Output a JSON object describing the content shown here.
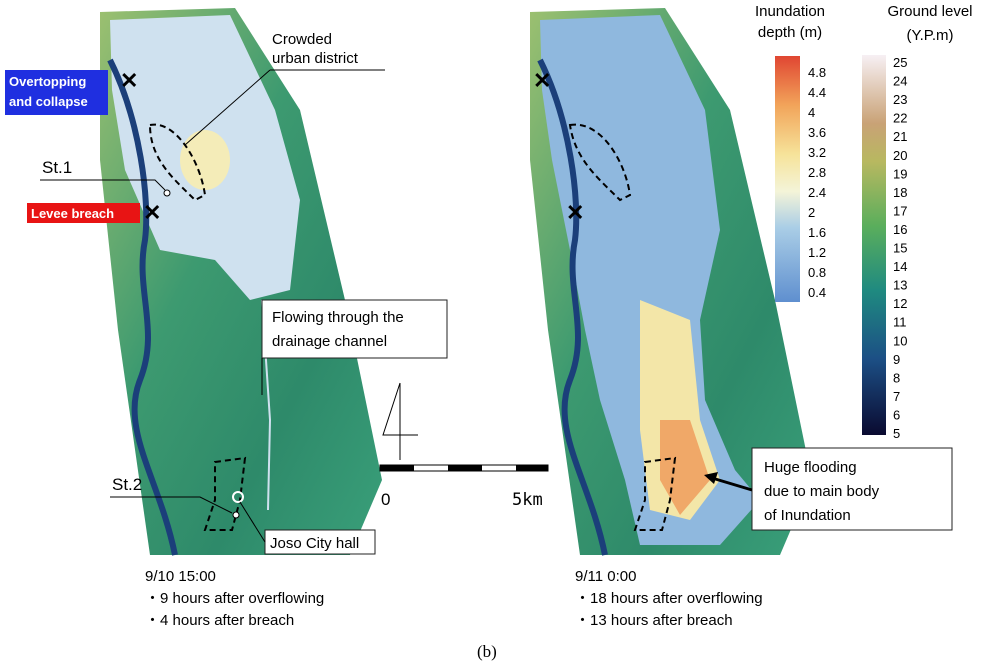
{
  "annotations": {
    "crowded": [
      "Crowded",
      "urban district"
    ],
    "overtopping": [
      "Overtopping",
      "and collapse"
    ],
    "st1": "St.1",
    "levee": "Levee breach",
    "flowing": [
      "Flowing through the",
      "drainage channel"
    ],
    "st2": "St.2",
    "joso": "Joso City hall",
    "huge": [
      "Huge flooding",
      "due to main body",
      "of Inundation"
    ]
  },
  "scale": {
    "start": "0",
    "end": "5km"
  },
  "captions": {
    "left": [
      "9/10 15:00",
      "・9 hours after overflowing",
      "・4 hours after breach"
    ],
    "right": [
      "9/11 0:00",
      "・18 hours after overflowing",
      "・13 hours after breach"
    ]
  },
  "legend_depth": {
    "title": [
      "Inundation",
      "depth (m)"
    ],
    "ticks": [
      4.8,
      4.4,
      4,
      3.6,
      3.2,
      2.8,
      2.4,
      2,
      1.6,
      1.2,
      0.8,
      0.4
    ]
  },
  "legend_ground": {
    "title": [
      "Ground level",
      "(Y.P.m)"
    ],
    "ticks": [
      25,
      24,
      23,
      22,
      21,
      20,
      19,
      18,
      17,
      16,
      15,
      14,
      13,
      12,
      11,
      10,
      9,
      8,
      7,
      6,
      5
    ]
  },
  "panel_label": "(b)"
}
